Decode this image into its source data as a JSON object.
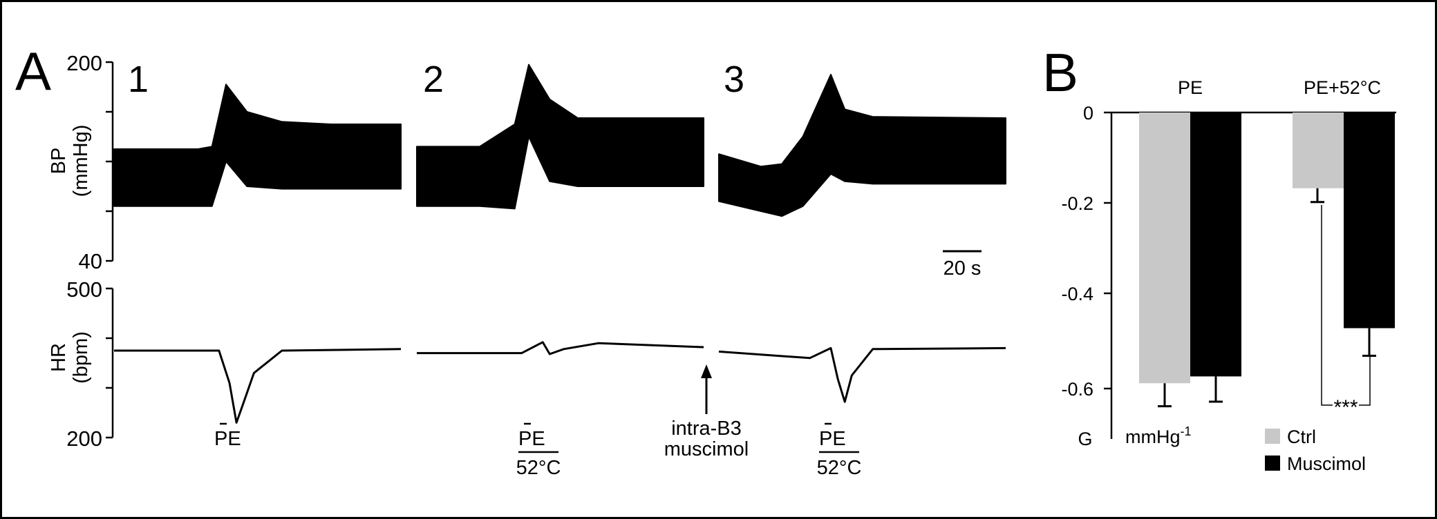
{
  "panel_a": {
    "label": "A",
    "trace_labels": [
      "1",
      "2",
      "3"
    ],
    "bp_axis": {
      "label_line1": "BP",
      "label_line2": "(mmHg)",
      "ticks": [
        "200",
        "40"
      ],
      "range": [
        40,
        200
      ],
      "unit": "mmHg"
    },
    "hr_axis": {
      "label_line1": "HR",
      "label_line2": "(bpm)",
      "ticks": [
        "500",
        "200"
      ],
      "range": [
        200,
        500
      ],
      "unit": "bpm"
    },
    "scale_bar": "20 s",
    "annotations": {
      "pe_1": "PE",
      "pe_2": "PE",
      "heat_2": "52°C",
      "pe_3": "PE",
      "heat_3": "52°C",
      "muscimol_line1": "intra-B3",
      "muscimol_line2": "muscimol"
    }
  },
  "panel_b": {
    "label": "B",
    "y_ticks": [
      "0",
      "-0.2",
      "-0.4",
      "-0.6"
    ],
    "y_axis_label": "G",
    "unit_label": "mmHg",
    "unit_exponent": "-1",
    "significance": "***",
    "legend": [
      {
        "label": "Ctrl",
        "color": "#c8c8c8"
      },
      {
        "label": "Muscimol",
        "color": "#000000"
      }
    ]
  },
  "chart_data": [
    {
      "type": "line",
      "panel": "A",
      "x_unit": "s",
      "series": [
        {
          "trace": "1",
          "signal": "BP",
          "x": [
            0,
            24,
            28,
            32,
            38,
            48,
            62,
            82
          ],
          "y_min": [
            84,
            84,
            84,
            120,
            100,
            98,
            98,
            98
          ],
          "y_max": [
            130,
            130,
            132,
            182,
            160,
            152,
            150,
            150
          ]
        },
        {
          "trace": "2",
          "signal": "BP",
          "x": [
            0,
            18,
            28,
            32,
            38,
            46,
            58,
            82
          ],
          "y_min": [
            84,
            84,
            82,
            140,
            104,
            100,
            100,
            100
          ],
          "y_max": [
            132,
            132,
            150,
            198,
            170,
            155,
            155,
            155
          ]
        },
        {
          "trace": "3",
          "signal": "BP",
          "x": [
            0,
            12,
            18,
            24,
            32,
            36,
            44,
            82
          ],
          "y_min": [
            88,
            80,
            76,
            84,
            110,
            104,
            102,
            102
          ],
          "y_max": [
            126,
            116,
            118,
            140,
            190,
            162,
            156,
            155
          ]
        },
        {
          "trace": "1",
          "signal": "HR",
          "x": [
            0,
            30,
            33,
            35,
            37,
            40,
            48,
            82
          ],
          "y": [
            375,
            375,
            310,
            230,
            270,
            330,
            375,
            378
          ]
        },
        {
          "trace": "2",
          "signal": "HR",
          "x": [
            0,
            30,
            36,
            38,
            42,
            52,
            82
          ],
          "y": [
            370,
            370,
            392,
            368,
            378,
            390,
            382
          ]
        },
        {
          "trace": "3",
          "signal": "HR",
          "x": [
            0,
            26,
            32,
            34,
            36,
            38,
            44,
            82
          ],
          "y": [
            373,
            360,
            380,
            318,
            272,
            325,
            378,
            380
          ]
        }
      ]
    },
    {
      "type": "bar",
      "panel": "B",
      "categories": [
        "PE",
        "PE+52°C"
      ],
      "ylim": [
        -0.7,
        0
      ],
      "y_ticks": [
        0,
        -0.2,
        -0.4,
        -0.6
      ],
      "series": [
        {
          "name": "Ctrl",
          "color": "#c8c8c8",
          "values": [
            -0.59,
            -0.165
          ],
          "errors": [
            0.05,
            0.03
          ]
        },
        {
          "name": "Muscimol",
          "color": "#000000",
          "values": [
            -0.575,
            -0.47
          ],
          "errors": [
            0.055,
            0.06
          ]
        }
      ]
    }
  ]
}
